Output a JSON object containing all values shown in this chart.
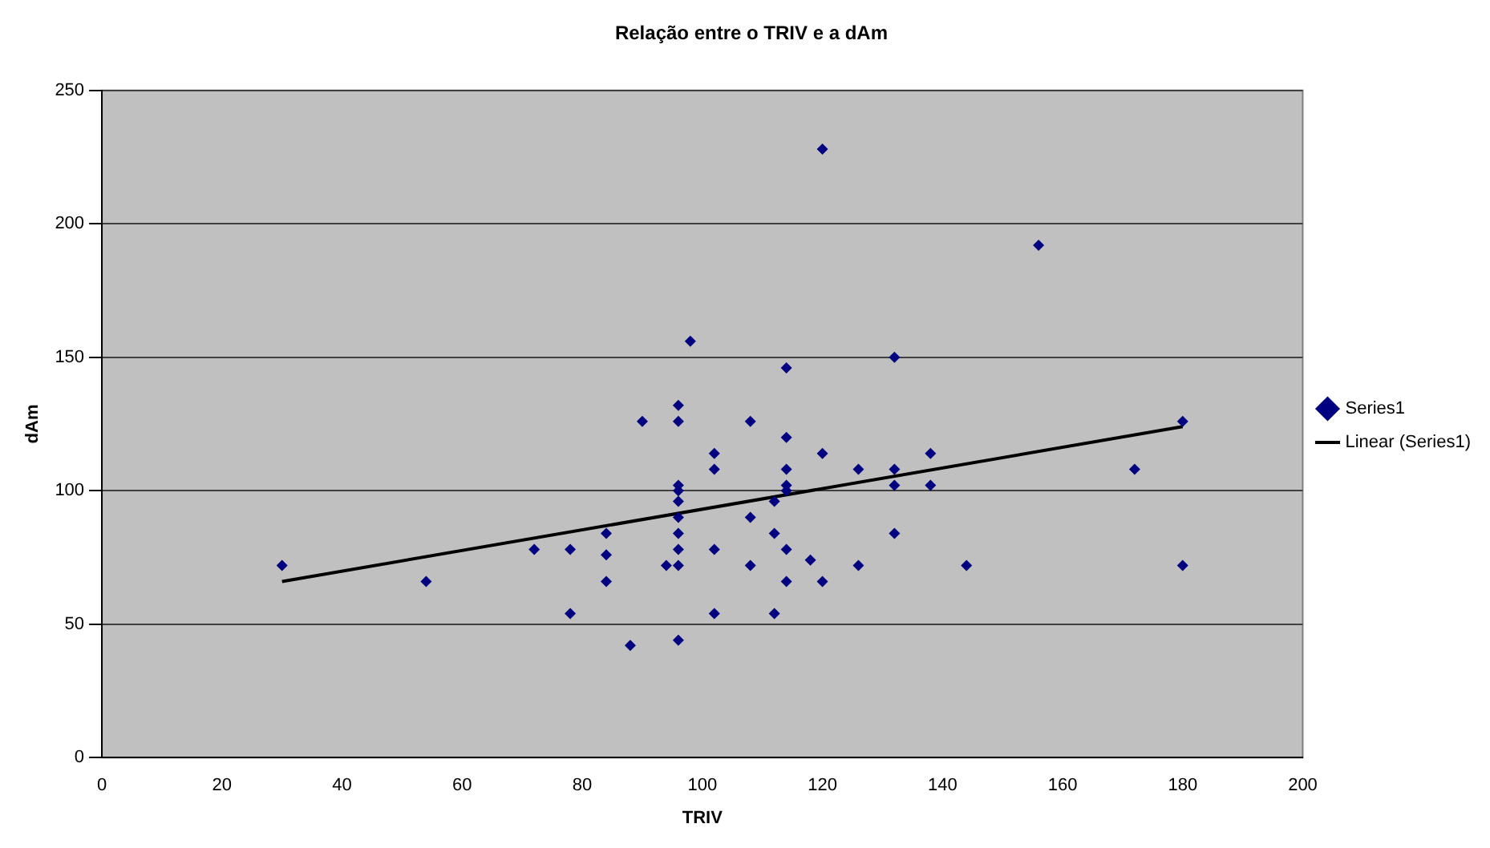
{
  "chart_data": {
    "type": "scatter",
    "title": "Relação entre o TRIV e a dAm",
    "xlabel": "TRIV",
    "ylabel": "dAm",
    "xlim": [
      0,
      200
    ],
    "xticks": [
      0,
      20,
      40,
      60,
      80,
      100,
      120,
      140,
      160,
      180,
      200
    ],
    "ylim": [
      0,
      250
    ],
    "yticks": [
      0,
      50,
      100,
      150,
      200,
      250
    ],
    "grid": "y",
    "legend": "right",
    "series": [
      {
        "name": "Series1",
        "color": "#000080",
        "marker": "diamond",
        "x": [
          30,
          54,
          72,
          78,
          78,
          84,
          84,
          84,
          88,
          90,
          94,
          96,
          96,
          96,
          96,
          96,
          96,
          96,
          96,
          96,
          96,
          98,
          102,
          102,
          102,
          102,
          108,
          108,
          108,
          112,
          112,
          112,
          114,
          114,
          114,
          114,
          114,
          114,
          114,
          118,
          120,
          120,
          120,
          126,
          126,
          132,
          132,
          132,
          132,
          138,
          138,
          144,
          156,
          172,
          180,
          180
        ],
        "values": [
          72,
          66,
          78,
          78,
          54,
          84,
          76,
          66,
          42,
          126,
          72,
          132,
          126,
          102,
          100,
          96,
          90,
          84,
          78,
          72,
          44,
          156,
          114,
          108,
          78,
          54,
          126,
          90,
          72,
          96,
          84,
          54,
          146,
          120,
          108,
          102,
          100,
          78,
          66,
          74,
          228,
          114,
          66,
          108,
          72,
          150,
          108,
          102,
          84,
          114,
          102,
          72,
          192,
          108,
          126,
          72
        ]
      },
      {
        "name": "Linear (Series1)",
        "type": "line",
        "color": "#000000",
        "marker": "none",
        "x": [
          30,
          180
        ],
        "values": [
          66,
          124
        ]
      }
    ]
  }
}
